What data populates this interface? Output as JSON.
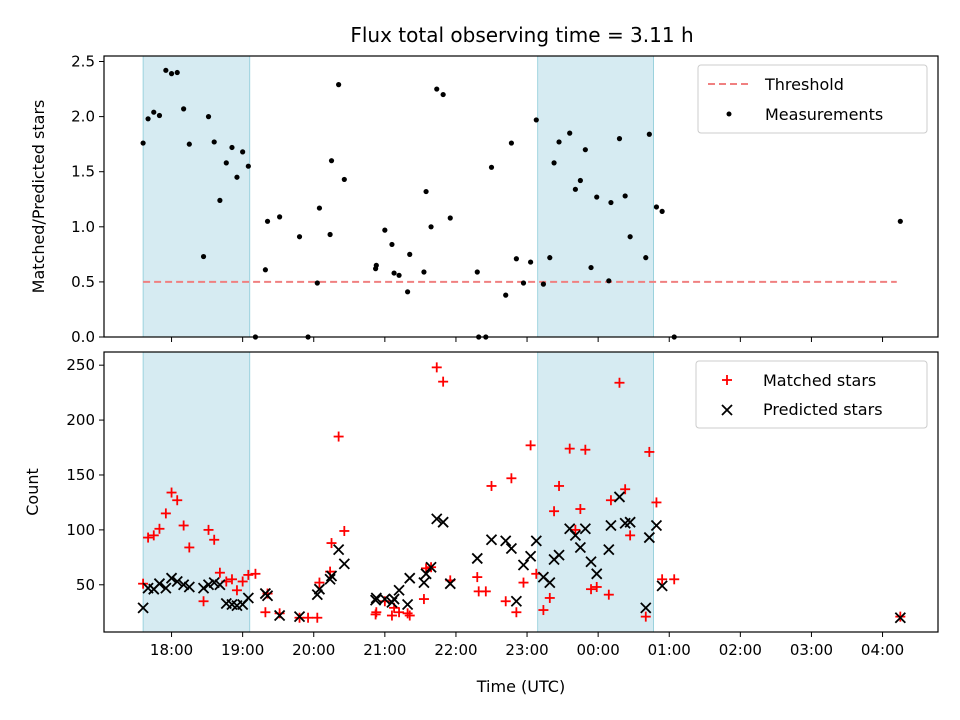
{
  "chart_data": {
    "type": "scatter",
    "title": "Flux total observing time = 3.11 h",
    "x_unit": "hours since 00:00 UTC",
    "xlim": [
      -6.95,
      4.78
    ],
    "xticks": [
      -6,
      -5,
      -4,
      -3,
      -2,
      -1,
      0,
      1,
      2,
      3,
      4
    ],
    "xtick_labels": [
      "18:00",
      "19:00",
      "20:00",
      "21:00",
      "22:00",
      "23:00",
      "00:00",
      "01:00",
      "02:00",
      "03:00",
      "04:00"
    ],
    "xlabel": "Time (UTC)",
    "shaded_spans": [
      {
        "start": -6.4,
        "end": -4.9
      },
      {
        "start": -0.85,
        "end": 0.78
      }
    ],
    "top": {
      "ylabel": "Matched/Predicted stars",
      "ylim": [
        0,
        2.55
      ],
      "yticks": [
        0.0,
        0.5,
        1.0,
        1.5,
        2.0,
        2.5
      ],
      "ytick_labels": [
        "0.0",
        "0.5",
        "1.0",
        "1.5",
        "2.0",
        "2.5"
      ],
      "threshold": {
        "name": "Threshold",
        "value": 0.5,
        "x_start": -6.4,
        "x_end": 4.2,
        "color": "#f08080"
      },
      "measurements": {
        "name": "Measurements",
        "color": "#000000",
        "points": [
          [
            -6.4,
            1.76
          ],
          [
            -6.33,
            1.98
          ],
          [
            -6.25,
            2.04
          ],
          [
            -6.17,
            2.01
          ],
          [
            -6.08,
            2.42
          ],
          [
            -6.0,
            2.39
          ],
          [
            -5.92,
            2.4
          ],
          [
            -5.83,
            2.07
          ],
          [
            -5.75,
            1.75
          ],
          [
            -5.55,
            0.73
          ],
          [
            -5.48,
            2.0
          ],
          [
            -5.4,
            1.77
          ],
          [
            -5.32,
            1.24
          ],
          [
            -5.23,
            1.58
          ],
          [
            -5.15,
            1.72
          ],
          [
            -5.08,
            1.45
          ],
          [
            -5.0,
            1.68
          ],
          [
            -4.92,
            1.55
          ],
          [
            -4.82,
            0.0
          ],
          [
            -4.68,
            0.61
          ],
          [
            -4.65,
            1.05
          ],
          [
            -4.48,
            1.09
          ],
          [
            -4.2,
            0.91
          ],
          [
            -4.08,
            0.0
          ],
          [
            -3.95,
            0.49
          ],
          [
            -3.92,
            1.17
          ],
          [
            -3.77,
            0.93
          ],
          [
            -3.75,
            1.6
          ],
          [
            -3.65,
            2.29
          ],
          [
            -3.57,
            1.43
          ],
          [
            -3.13,
            0.62
          ],
          [
            -3.12,
            0.65
          ],
          [
            -3.0,
            0.97
          ],
          [
            -2.9,
            0.84
          ],
          [
            -2.87,
            0.58
          ],
          [
            -2.8,
            0.56
          ],
          [
            -2.68,
            0.41
          ],
          [
            -2.65,
            0.75
          ],
          [
            -2.45,
            0.59
          ],
          [
            -2.42,
            1.32
          ],
          [
            -2.35,
            1.0
          ],
          [
            -2.27,
            2.25
          ],
          [
            -2.18,
            2.2
          ],
          [
            -2.08,
            1.08
          ],
          [
            -1.7,
            0.59
          ],
          [
            -1.68,
            0.0
          ],
          [
            -1.58,
            0.0
          ],
          [
            -1.5,
            1.54
          ],
          [
            -1.3,
            0.38
          ],
          [
            -1.22,
            1.76
          ],
          [
            -1.15,
            0.71
          ],
          [
            -1.05,
            0.49
          ],
          [
            -0.95,
            0.68
          ],
          [
            -0.87,
            1.97
          ],
          [
            -0.77,
            0.48
          ],
          [
            -0.68,
            0.72
          ],
          [
            -0.62,
            1.58
          ],
          [
            -0.55,
            1.77
          ],
          [
            -0.4,
            1.85
          ],
          [
            -0.32,
            1.34
          ],
          [
            -0.25,
            1.42
          ],
          [
            -0.18,
            1.7
          ],
          [
            -0.1,
            0.63
          ],
          [
            -0.02,
            1.27
          ],
          [
            0.15,
            0.51
          ],
          [
            0.18,
            1.22
          ],
          [
            0.3,
            1.8
          ],
          [
            0.38,
            1.28
          ],
          [
            0.45,
            0.91
          ],
          [
            0.67,
            0.72
          ],
          [
            0.72,
            1.84
          ],
          [
            0.82,
            1.18
          ],
          [
            0.9,
            1.14
          ],
          [
            1.07,
            0.0
          ],
          [
            4.25,
            1.05
          ]
        ]
      }
    },
    "bottom": {
      "ylabel": "Count",
      "ylim": [
        7,
        262
      ],
      "yticks": [
        50,
        100,
        150,
        200,
        250
      ],
      "ytick_labels": [
        "50",
        "100",
        "150",
        "200",
        "250"
      ],
      "series": [
        {
          "name": "Matched stars",
          "marker": "plus",
          "color": "#ff0000",
          "points": [
            [
              -6.4,
              51
            ],
            [
              -6.33,
              93
            ],
            [
              -6.25,
              95
            ],
            [
              -6.17,
              101
            ],
            [
              -6.08,
              115
            ],
            [
              -6.0,
              134
            ],
            [
              -5.92,
              127
            ],
            [
              -5.83,
              104
            ],
            [
              -5.75,
              84
            ],
            [
              -5.55,
              35
            ],
            [
              -5.48,
              100
            ],
            [
              -5.4,
              91
            ],
            [
              -5.32,
              61
            ],
            [
              -5.23,
              53
            ],
            [
              -5.15,
              55
            ],
            [
              -5.08,
              45
            ],
            [
              -5.0,
              53
            ],
            [
              -4.92,
              59
            ],
            [
              -4.82,
              60
            ],
            [
              -4.68,
              25
            ],
            [
              -4.65,
              42
            ],
            [
              -4.48,
              24
            ],
            [
              -4.2,
              20
            ],
            [
              -4.08,
              20
            ],
            [
              -3.95,
              20
            ],
            [
              -3.92,
              52
            ],
            [
              -3.77,
              62
            ],
            [
              -3.75,
              88
            ],
            [
              -3.65,
              185
            ],
            [
              -3.57,
              99
            ],
            [
              -3.13,
              23
            ],
            [
              -3.12,
              25
            ],
            [
              -3.0,
              35
            ],
            [
              -2.9,
              22
            ],
            [
              -2.87,
              29
            ],
            [
              -2.8,
              25
            ],
            [
              -2.68,
              24
            ],
            [
              -2.65,
              22
            ],
            [
              -2.45,
              37
            ],
            [
              -2.42,
              65
            ],
            [
              -2.35,
              66
            ],
            [
              -2.27,
              248
            ],
            [
              -2.18,
              235
            ],
            [
              -2.08,
              54
            ],
            [
              -1.7,
              57
            ],
            [
              -1.68,
              44
            ],
            [
              -1.58,
              44
            ],
            [
              -1.5,
              140
            ],
            [
              -1.3,
              35
            ],
            [
              -1.22,
              147
            ],
            [
              -1.15,
              25
            ],
            [
              -1.05,
              52
            ],
            [
              -0.95,
              177
            ],
            [
              -0.87,
              60
            ],
            [
              -0.77,
              27
            ],
            [
              -0.68,
              38
            ],
            [
              -0.62,
              117
            ],
            [
              -0.55,
              140
            ],
            [
              -0.4,
              174
            ],
            [
              -0.32,
              100
            ],
            [
              -0.25,
              119
            ],
            [
              -0.18,
              173
            ],
            [
              -0.1,
              46
            ],
            [
              -0.02,
              48
            ],
            [
              0.15,
              41
            ],
            [
              0.18,
              127
            ],
            [
              0.3,
              234
            ],
            [
              0.38,
              137
            ],
            [
              0.45,
              95
            ],
            [
              0.67,
              21
            ],
            [
              0.72,
              171
            ],
            [
              0.82,
              125
            ],
            [
              0.9,
              55
            ],
            [
              1.07,
              55
            ],
            [
              4.25,
              21
            ]
          ]
        },
        {
          "name": "Predicted stars",
          "marker": "x",
          "color": "#000000",
          "points": [
            [
              -6.4,
              29
            ],
            [
              -6.33,
              47
            ],
            [
              -6.25,
              46
            ],
            [
              -6.17,
              51
            ],
            [
              -6.08,
              47
            ],
            [
              -6.0,
              56
            ],
            [
              -5.92,
              53
            ],
            [
              -5.83,
              50
            ],
            [
              -5.75,
              48
            ],
            [
              -5.55,
              47
            ],
            [
              -5.48,
              50
            ],
            [
              -5.4,
              52
            ],
            [
              -5.32,
              50
            ],
            [
              -5.23,
              33
            ],
            [
              -5.15,
              32
            ],
            [
              -5.08,
              31
            ],
            [
              -5.0,
              32
            ],
            [
              -4.92,
              38
            ],
            [
              -4.68,
              42
            ],
            [
              -4.65,
              40
            ],
            [
              -4.48,
              22
            ],
            [
              -4.2,
              21
            ],
            [
              -3.95,
              41
            ],
            [
              -3.92,
              46
            ],
            [
              -3.77,
              55
            ],
            [
              -3.75,
              58
            ],
            [
              -3.65,
              82
            ],
            [
              -3.57,
              69
            ],
            [
              -3.13,
              36
            ],
            [
              -3.12,
              38
            ],
            [
              -3.0,
              37
            ],
            [
              -2.9,
              34
            ],
            [
              -2.87,
              37
            ],
            [
              -2.8,
              45
            ],
            [
              -2.68,
              32
            ],
            [
              -2.65,
              56
            ],
            [
              -2.45,
              52
            ],
            [
              -2.42,
              60
            ],
            [
              -2.35,
              66
            ],
            [
              -2.27,
              110
            ],
            [
              -2.18,
              107
            ],
            [
              -2.08,
              51
            ],
            [
              -1.7,
              74
            ],
            [
              -1.5,
              91
            ],
            [
              -1.3,
              90
            ],
            [
              -1.22,
              83
            ],
            [
              -1.15,
              35
            ],
            [
              -1.05,
              68
            ],
            [
              -0.95,
              76
            ],
            [
              -0.87,
              90
            ],
            [
              -0.77,
              57
            ],
            [
              -0.68,
              52
            ],
            [
              -0.62,
              73
            ],
            [
              -0.55,
              77
            ],
            [
              -0.4,
              101
            ],
            [
              -0.32,
              95
            ],
            [
              -0.25,
              84
            ],
            [
              -0.18,
              101
            ],
            [
              -0.1,
              71
            ],
            [
              -0.02,
              60
            ],
            [
              0.15,
              82
            ],
            [
              0.18,
              104
            ],
            [
              0.3,
              130
            ],
            [
              0.38,
              106
            ],
            [
              0.45,
              107
            ],
            [
              0.67,
              29
            ],
            [
              0.72,
              93
            ],
            [
              0.82,
              104
            ],
            [
              0.9,
              49
            ],
            [
              4.25,
              20
            ]
          ]
        }
      ]
    }
  }
}
